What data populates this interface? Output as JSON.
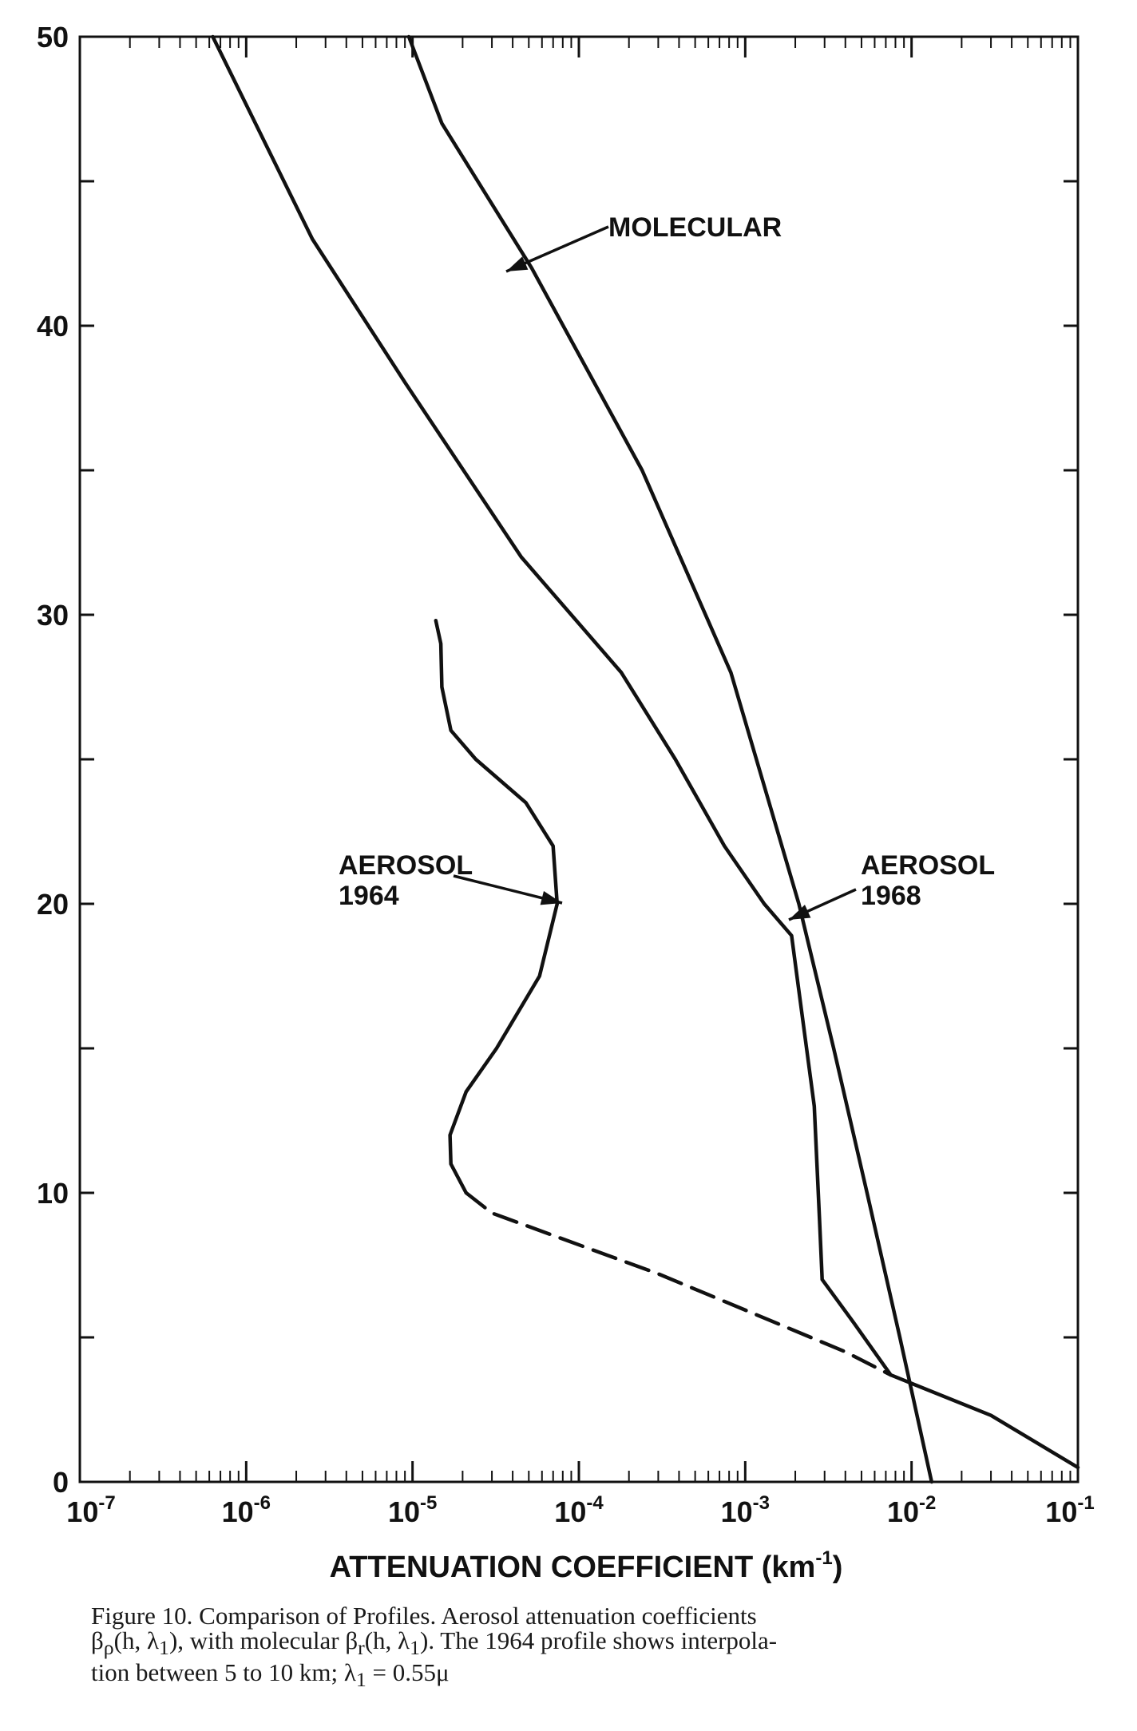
{
  "chart_data": {
    "type": "line",
    "xscale": "log",
    "xlim": [
      1e-07,
      0.1
    ],
    "ylim": [
      0,
      50
    ],
    "grid": false,
    "xlabel": "ATTENUATION COEFFICIENT (km⁻¹)",
    "ylabel": "",
    "x_tick_labels": [
      {
        "base": "10",
        "exp": "-7"
      },
      {
        "base": "10",
        "exp": "-6"
      },
      {
        "base": "10",
        "exp": "-5"
      },
      {
        "base": "10",
        "exp": "-4"
      },
      {
        "base": "10",
        "exp": "-3"
      },
      {
        "base": "10",
        "exp": "-2"
      },
      {
        "base": "10",
        "exp": "-1"
      }
    ],
    "y_tick_labels": [
      "0",
      "10",
      "20",
      "30",
      "40",
      "50"
    ],
    "annotations": [
      {
        "lines": [
          "MOLECULAR"
        ]
      },
      {
        "lines": [
          "AEROSOL",
          "1964"
        ]
      },
      {
        "lines": [
          "AEROSOL",
          "1968"
        ]
      }
    ],
    "series": [
      {
        "id": "molecular",
        "style": "solid",
        "points": [
          [
            0.0132,
            0
          ],
          [
            0.0085,
            5
          ],
          [
            0.0054,
            10
          ],
          [
            0.0034,
            15
          ],
          [
            0.0021,
            20
          ],
          [
            0.00082,
            28
          ],
          [
            0.00024,
            35
          ],
          [
            5.2e-05,
            42
          ],
          [
            1.5e-05,
            47
          ],
          [
            9.5e-06,
            50
          ]
        ]
      },
      {
        "id": "aerosol-1968",
        "style": "solid",
        "points": [
          [
            0.1,
            0.5
          ],
          [
            0.03,
            2.3
          ],
          [
            0.0075,
            3.7
          ],
          [
            0.0045,
            5.5
          ],
          [
            0.0029,
            7
          ],
          [
            0.0028,
            9
          ],
          [
            0.0026,
            13
          ],
          [
            0.0021,
            17
          ],
          [
            0.0019,
            18.9
          ],
          [
            0.0013,
            20
          ],
          [
            0.00075,
            22
          ],
          [
            0.00038,
            25
          ],
          [
            0.00018,
            28
          ],
          [
            4.5e-05,
            32
          ],
          [
            9.1e-06,
            38
          ],
          [
            2.5e-06,
            43
          ],
          [
            6.3e-07,
            50
          ]
        ]
      },
      {
        "id": "aerosol-1964",
        "style": "solid",
        "points": [
          [
            2.1e-05,
            10
          ],
          [
            1.7e-05,
            11
          ],
          [
            1.68e-05,
            12
          ],
          [
            2.1e-05,
            13.5
          ],
          [
            3.2e-05,
            15
          ],
          [
            5.8e-05,
            17.5
          ],
          [
            7.4e-05,
            20
          ],
          [
            7e-05,
            22
          ],
          [
            4.8e-05,
            23.5
          ],
          [
            2.4e-05,
            25
          ],
          [
            1.7e-05,
            26
          ],
          [
            1.5e-05,
            27.5
          ],
          [
            1.48e-05,
            29
          ],
          [
            1.38e-05,
            29.8
          ]
        ]
      },
      {
        "id": "aerosol-1964-interpolated",
        "style": "dashed",
        "points": [
          [
            2.1e-05,
            10
          ],
          [
            3e-05,
            9.3
          ],
          [
            0.0003,
            7.2
          ],
          [
            0.004,
            4.5
          ],
          [
            0.0075,
            3.7
          ]
        ]
      }
    ]
  },
  "caption": {
    "line1": "Figure 10.  Comparison of Profiles.  Aerosol attenuation coefficients",
    "line2_part1": "β",
    "line2_sub1": "ρ",
    "line2_part2": "(h, λ",
    "line2_sub2": "1",
    "line2_part3": "),  with molecular β",
    "line2_sub3": "r",
    "line2_part4": "(h, λ",
    "line2_sub4": "1",
    "line2_part5": ").   The 1964 profile shows interpola-",
    "line3_part1": "tion between 5 to 10 km;   λ",
    "line3_sub1": "1",
    "line3_part2": " = 0.55μ"
  }
}
